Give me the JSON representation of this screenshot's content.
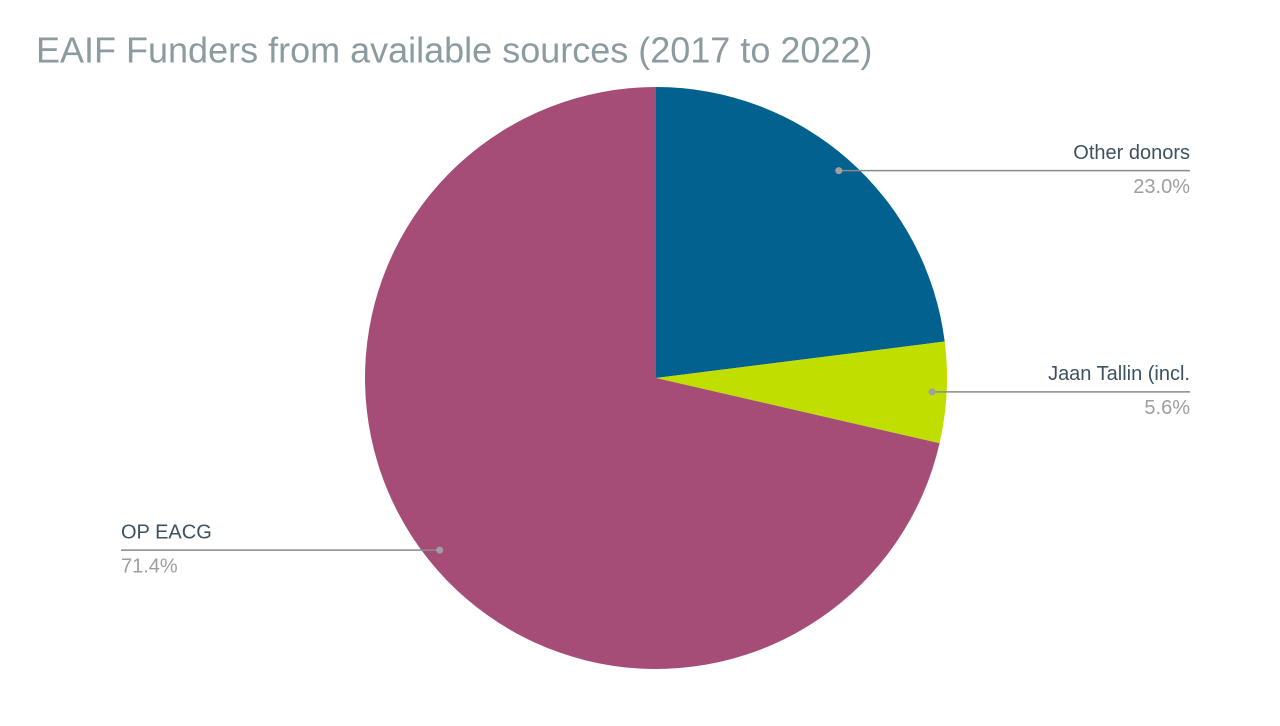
{
  "chart_data": {
    "type": "pie",
    "title": "EAIF Funders from available sources (2017 to 2022)",
    "categories": [
      "Other donors",
      "Jaan Tallin (incl.",
      "OP EACG"
    ],
    "values": [
      23.0,
      5.6,
      71.4
    ],
    "value_labels": [
      "23.0%",
      "5.6%",
      "71.4%"
    ],
    "colors": [
      "#02618f",
      "#c0de00",
      "#a54c77"
    ]
  }
}
